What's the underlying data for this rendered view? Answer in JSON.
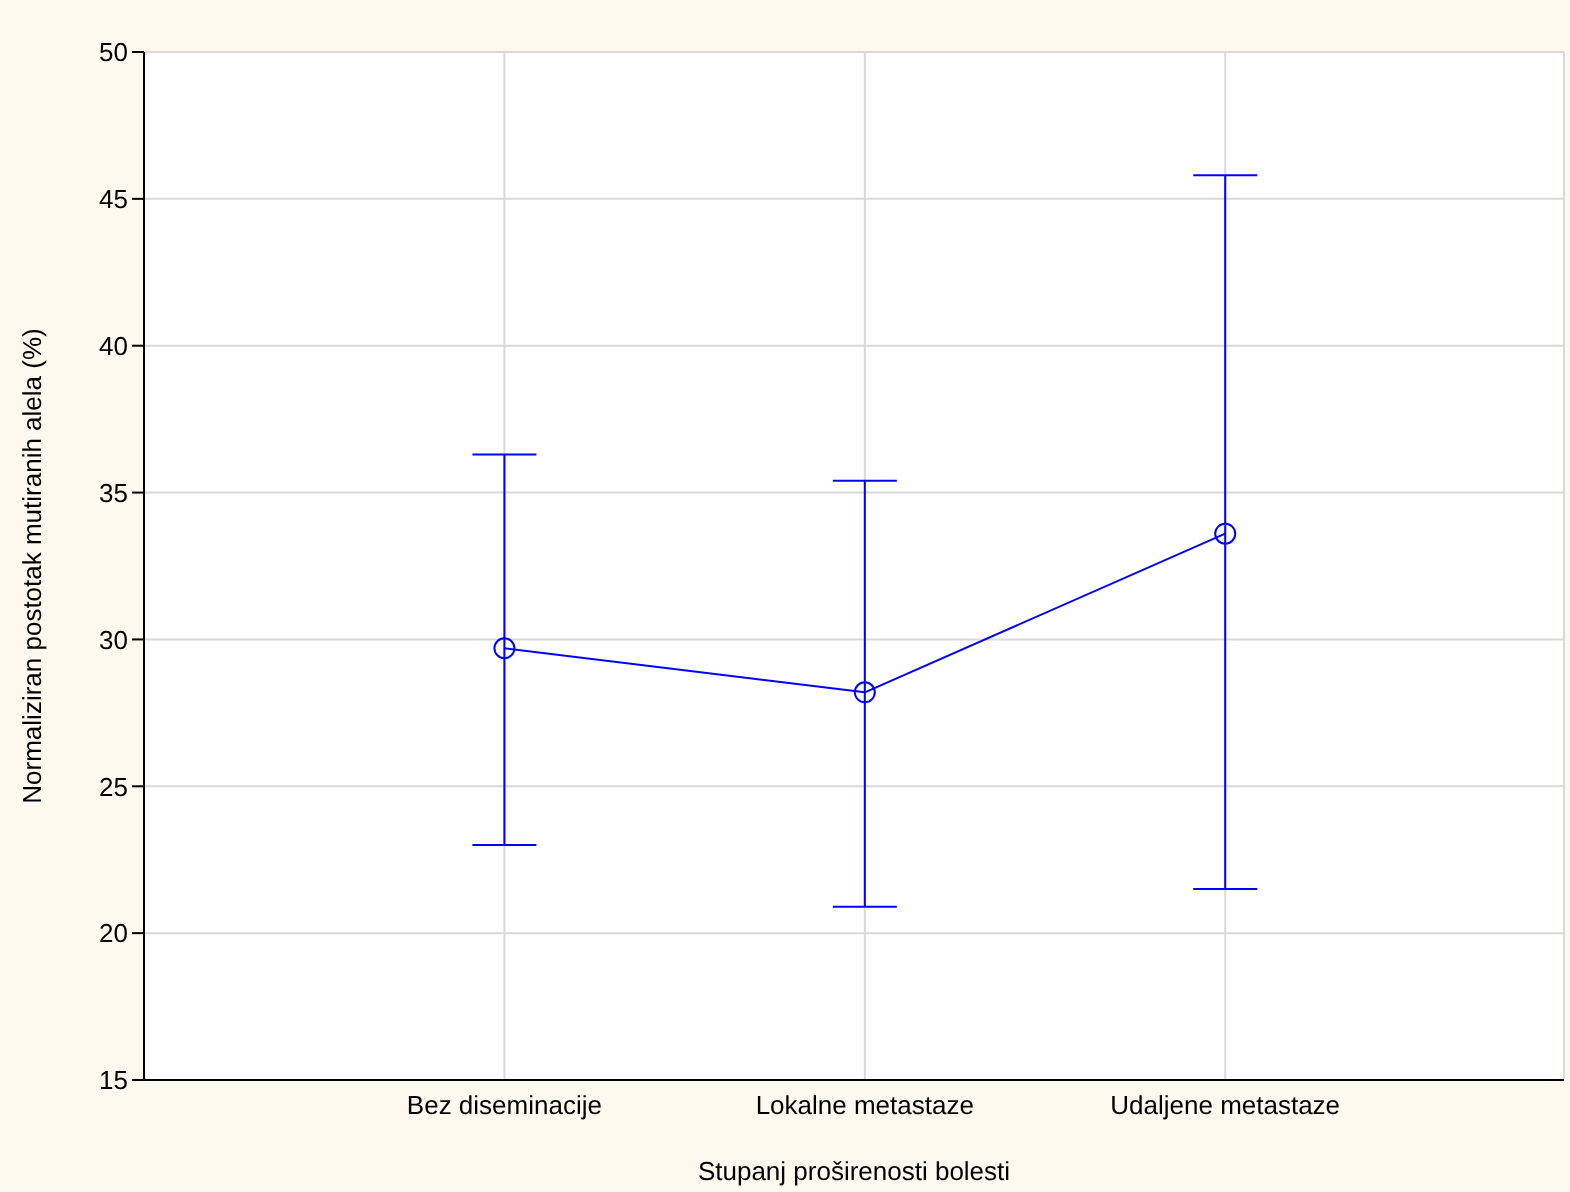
{
  "chart_data": {
    "type": "line",
    "xlabel": "Stupanj proširenosti bolesti",
    "ylabel": "Normaliziran postotak mutiranih alela (%)",
    "categories": [
      "Bez diseminacije",
      "Lokalne metastaze",
      "Udaljene metastaze"
    ],
    "series": [
      {
        "color": "#0000ff",
        "values": [
          29.7,
          28.2,
          33.6
        ],
        "errors": [
          [
            23.0,
            36.3
          ],
          [
            20.9,
            35.4
          ],
          [
            21.5,
            45.8
          ]
        ]
      }
    ],
    "ylim": [
      15,
      50
    ],
    "yticks": [
      15,
      20,
      25,
      30,
      35,
      40,
      45,
      50
    ],
    "grid": true,
    "marker": "circle",
    "line_style": "solid"
  }
}
